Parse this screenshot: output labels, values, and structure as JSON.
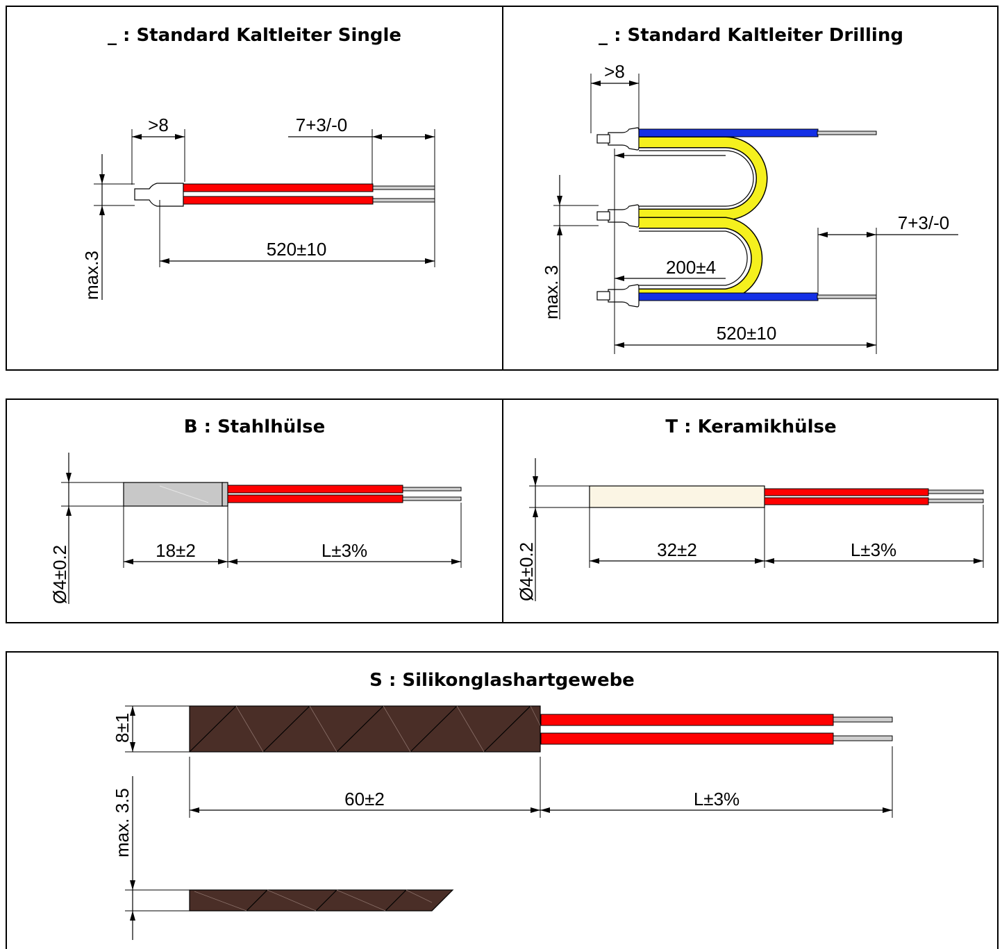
{
  "panels": {
    "single": {
      "title": "_ : Standard Kaltleiter Single",
      "dim_strip": ">8",
      "dim_end": "7+3/-0",
      "dim_length": "520±10",
      "dim_max": "max.3"
    },
    "drilling": {
      "title": "_ : Standard Kaltleiter Drilling",
      "dim_strip": ">8",
      "dim_end": "7+3/-0",
      "dim_loop": "200±4",
      "dim_length": "520±10",
      "dim_max": "max. 3"
    },
    "steel": {
      "title": "B : Stahlhülse",
      "dim_sleeve": "18±2",
      "dim_length": "L±3%",
      "dim_diameter": "Ø4±0.2"
    },
    "ceramic": {
      "title": "T : Keramikhülse",
      "dim_sleeve": "32±2",
      "dim_length": "L±3%",
      "dim_diameter": "Ø4±0.2"
    },
    "silicone": {
      "title": "S : Silikonglashartgewebe",
      "dim_width": "8±1",
      "dim_thickness": "max. 3.5",
      "dim_sleeve": "60±2",
      "dim_length": "L±3%"
    }
  },
  "colors": {
    "wire_red": "#ff0000",
    "wire_blue": "#1430e6",
    "wire_yellow": "#f5f01e",
    "steel_sleeve": "#c8c8c8",
    "ceramic_sleeve": "#fbf5e4",
    "silicone_sleeve": "#4a2e27",
    "bare_wire": "#cfcfcf"
  }
}
